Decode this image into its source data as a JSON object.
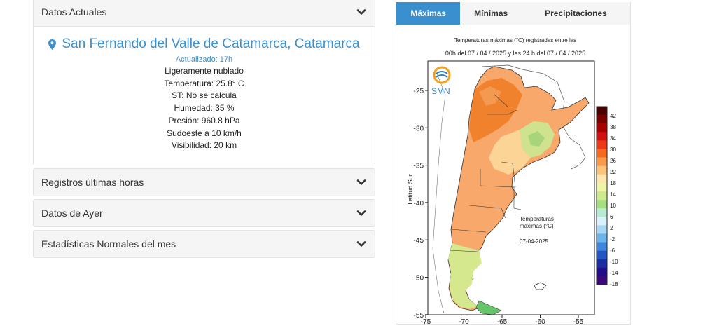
{
  "datos_actuales": {
    "title": "Datos Actuales",
    "location": "San Fernando del Valle de Catamarca, Catamarca",
    "updated": "Actualizado: 17h",
    "lines": [
      "Ligeramente nublado",
      "Temperatura: 25.8° C",
      "ST: No se calcula",
      "Humedad: 35 %",
      "Presión: 960.8 hPa",
      "Sudoeste a 10 km/h",
      "Visibilidad: 20 km"
    ]
  },
  "sections": [
    {
      "title": "Registros últimas horas"
    },
    {
      "title": "Datos de Ayer"
    },
    {
      "title": "Estadísticas Normales del mes"
    }
  ],
  "tabs": [
    "Máximas",
    "Mínimas",
    "Precipitaciones"
  ],
  "map": {
    "title_line1": "Temperaturas máximas (°C) registradas entre las",
    "title_line2": "00h del 07 / 04 / 2025 y las 24 h del 07 / 04 / 2025",
    "logo_text": "SMN",
    "ylabel": "Latitud Sur",
    "yticks": [
      "-25",
      "-30",
      "-35",
      "-40",
      "-45",
      "-50",
      "-55"
    ],
    "xticks": [
      "-75",
      "-70",
      "-65",
      "-60",
      "-55"
    ],
    "legend_label_line1": "Temperaturas",
    "legend_label_line2": "máximas (°C)",
    "date": "07-04-2025",
    "scale_labels": [
      "42",
      "38",
      "34",
      "30",
      "26",
      "22",
      "18",
      "14",
      "10",
      "6",
      "2",
      "-2",
      "-6",
      "-10",
      "-14",
      "-18"
    ],
    "scale_colors": [
      "#4a0000",
      "#7a0000",
      "#a80000",
      "#d21010",
      "#ee3a1a",
      "#f6691f",
      "#f9994a",
      "#fbc47a",
      "#fde6ae",
      "#eef5a6",
      "#cdea8c",
      "#a6de82",
      "#b7ecd4",
      "#d8f1fa",
      "#a8d7f4",
      "#6db3ec",
      "#3f86dd",
      "#2356c4",
      "#1a2ea4",
      "#200e88",
      "#3c0a78"
    ]
  }
}
